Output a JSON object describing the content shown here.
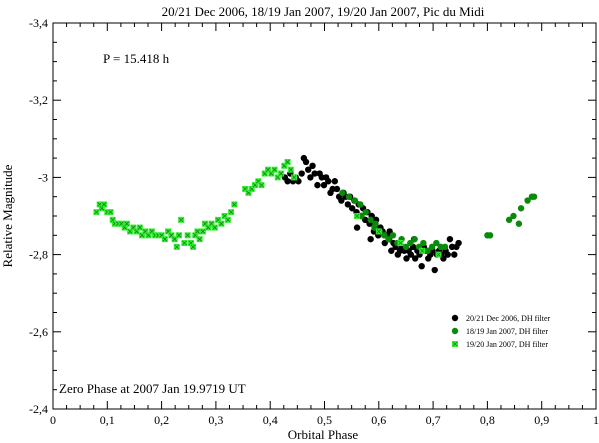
{
  "chart_data": {
    "type": "scatter",
    "title": "20/21 Dec 2006, 18/19 Jan 2007, 19/20 Jan 2007, Pic du Midi",
    "xlabel": "Orbital Phase",
    "ylabel": "Relative Magnitude",
    "xlim": [
      0,
      1
    ],
    "ylim": [
      -2.4,
      -3.4
    ],
    "y_inverted": true,
    "xticks": [
      "0",
      "0,1",
      "0,2",
      "0,3",
      "0,4",
      "0,5",
      "0,6",
      "0,7",
      "0,8",
      "0,9",
      "1"
    ],
    "yticks": [
      "-3,4",
      "-3,2",
      "-3",
      "-2,8",
      "-2,6",
      "-2,4"
    ],
    "grid": false,
    "legend_position": "bottom-right",
    "annotations": {
      "period": "P = 15.418 h",
      "zero_phase": "Zero Phase at 2007 Jan 19.9719 UT"
    },
    "series": [
      {
        "name": "20/21 Dec 2006, DH filter",
        "color": "#000000",
        "marker": "circle",
        "points": [
          [
            0.427,
            -3.0
          ],
          [
            0.432,
            -2.99
          ],
          [
            0.437,
            -3.01
          ],
          [
            0.442,
            -2.99
          ],
          [
            0.447,
            -3.0
          ],
          [
            0.452,
            -2.99
          ],
          [
            0.458,
            -3.01
          ],
          [
            0.462,
            -3.05
          ],
          [
            0.466,
            -3.04
          ],
          [
            0.47,
            -3.02
          ],
          [
            0.474,
            -3.0
          ],
          [
            0.478,
            -3.03
          ],
          [
            0.482,
            -3.01
          ],
          [
            0.487,
            -2.98
          ],
          [
            0.491,
            -3.01
          ],
          [
            0.495,
            -3.0
          ],
          [
            0.499,
            -2.98
          ],
          [
            0.503,
            -3.0
          ],
          [
            0.507,
            -2.99
          ],
          [
            0.511,
            -2.96
          ],
          [
            0.515,
            -2.97
          ],
          [
            0.519,
            -2.99
          ],
          [
            0.523,
            -2.97
          ],
          [
            0.527,
            -2.95
          ],
          [
            0.531,
            -2.94
          ],
          [
            0.535,
            -2.96
          ],
          [
            0.539,
            -2.95
          ],
          [
            0.543,
            -2.93
          ],
          [
            0.547,
            -2.95
          ],
          [
            0.551,
            -2.92
          ],
          [
            0.555,
            -2.94
          ],
          [
            0.559,
            -2.91
          ],
          [
            0.563,
            -2.93
          ],
          [
            0.567,
            -2.9
          ],
          [
            0.571,
            -2.92
          ],
          [
            0.575,
            -2.89
          ],
          [
            0.579,
            -2.91
          ],
          [
            0.583,
            -2.88
          ],
          [
            0.587,
            -2.9
          ],
          [
            0.591,
            -2.86
          ],
          [
            0.595,
            -2.89
          ],
          [
            0.599,
            -2.85
          ],
          [
            0.603,
            -2.87
          ],
          [
            0.607,
            -2.86
          ],
          [
            0.611,
            -2.83
          ],
          [
            0.615,
            -2.85
          ],
          [
            0.619,
            -2.84
          ],
          [
            0.623,
            -2.81
          ],
          [
            0.627,
            -2.83
          ],
          [
            0.631,
            -2.82
          ],
          [
            0.635,
            -2.8
          ],
          [
            0.639,
            -2.81
          ],
          [
            0.643,
            -2.82
          ],
          [
            0.647,
            -2.81
          ],
          [
            0.651,
            -2.79
          ],
          [
            0.655,
            -2.81
          ],
          [
            0.659,
            -2.8
          ],
          [
            0.663,
            -2.82
          ],
          [
            0.667,
            -2.79
          ],
          [
            0.671,
            -2.81
          ],
          [
            0.675,
            -2.8
          ],
          [
            0.679,
            -2.77
          ],
          [
            0.683,
            -2.82
          ],
          [
            0.687,
            -2.81
          ],
          [
            0.691,
            -2.79
          ],
          [
            0.695,
            -2.8
          ],
          [
            0.699,
            -2.81
          ],
          [
            0.703,
            -2.76
          ],
          [
            0.707,
            -2.8
          ],
          [
            0.711,
            -2.81
          ],
          [
            0.715,
            -2.8
          ],
          [
            0.719,
            -2.79
          ],
          [
            0.723,
            -2.81
          ],
          [
            0.727,
            -2.8
          ],
          [
            0.731,
            -2.84
          ],
          [
            0.735,
            -2.82
          ],
          [
            0.739,
            -2.8
          ],
          [
            0.743,
            -2.82
          ],
          [
            0.747,
            -2.83
          ],
          [
            0.56,
            -2.87
          ],
          [
            0.585,
            -2.84
          ],
          [
            0.62,
            -2.86
          ],
          [
            0.665,
            -2.84
          ]
        ]
      },
      {
        "name": "18/19 Jan 2007, DH filter",
        "color": "#0a8a0a",
        "marker": "circle",
        "points": [
          [
            0.533,
            -2.96
          ],
          [
            0.545,
            -2.95
          ],
          [
            0.556,
            -2.94
          ],
          [
            0.566,
            -2.93
          ],
          [
            0.576,
            -2.91
          ],
          [
            0.585,
            -2.89
          ],
          [
            0.594,
            -2.88
          ],
          [
            0.602,
            -2.86
          ],
          [
            0.61,
            -2.85
          ],
          [
            0.618,
            -2.84
          ],
          [
            0.626,
            -2.85
          ],
          [
            0.634,
            -2.83
          ],
          [
            0.642,
            -2.84
          ],
          [
            0.65,
            -2.82
          ],
          [
            0.658,
            -2.83
          ],
          [
            0.666,
            -2.84
          ],
          [
            0.674,
            -2.82
          ],
          [
            0.682,
            -2.83
          ],
          [
            0.69,
            -2.81
          ],
          [
            0.698,
            -2.82
          ],
          [
            0.706,
            -2.83
          ],
          [
            0.714,
            -2.82
          ],
          [
            0.722,
            -2.82
          ],
          [
            0.568,
            -2.9
          ],
          [
            0.592,
            -2.87
          ],
          [
            0.8,
            -2.85
          ],
          [
            0.805,
            -2.85
          ],
          [
            0.84,
            -2.89
          ],
          [
            0.848,
            -2.9
          ],
          [
            0.858,
            -2.88
          ],
          [
            0.862,
            -2.92
          ],
          [
            0.874,
            -2.94
          ],
          [
            0.882,
            -2.95
          ],
          [
            0.886,
            -2.95
          ]
        ]
      },
      {
        "name": "19/20 Jan 2007, DH filter",
        "color": "#33ee33",
        "marker": "square",
        "points": [
          [
            0.08,
            -2.91
          ],
          [
            0.086,
            -2.93
          ],
          [
            0.09,
            -2.92
          ],
          [
            0.094,
            -2.93
          ],
          [
            0.1,
            -2.91
          ],
          [
            0.106,
            -2.91
          ],
          [
            0.11,
            -2.89
          ],
          [
            0.114,
            -2.88
          ],
          [
            0.12,
            -2.88
          ],
          [
            0.126,
            -2.88
          ],
          [
            0.132,
            -2.87
          ],
          [
            0.136,
            -2.88
          ],
          [
            0.142,
            -2.86
          ],
          [
            0.148,
            -2.87
          ],
          [
            0.154,
            -2.86
          ],
          [
            0.16,
            -2.87
          ],
          [
            0.164,
            -2.85
          ],
          [
            0.17,
            -2.86
          ],
          [
            0.176,
            -2.85
          ],
          [
            0.182,
            -2.86
          ],
          [
            0.188,
            -2.85
          ],
          [
            0.194,
            -2.85
          ],
          [
            0.2,
            -2.85
          ],
          [
            0.206,
            -2.84
          ],
          [
            0.212,
            -2.86
          ],
          [
            0.218,
            -2.85
          ],
          [
            0.224,
            -2.84
          ],
          [
            0.228,
            -2.82
          ],
          [
            0.232,
            -2.85
          ],
          [
            0.236,
            -2.89
          ],
          [
            0.242,
            -2.83
          ],
          [
            0.248,
            -2.85
          ],
          [
            0.254,
            -2.83
          ],
          [
            0.258,
            -2.82
          ],
          [
            0.262,
            -2.85
          ],
          [
            0.266,
            -2.86
          ],
          [
            0.27,
            -2.84
          ],
          [
            0.276,
            -2.86
          ],
          [
            0.28,
            -2.88
          ],
          [
            0.286,
            -2.87
          ],
          [
            0.292,
            -2.88
          ],
          [
            0.298,
            -2.87
          ],
          [
            0.304,
            -2.89
          ],
          [
            0.31,
            -2.88
          ],
          [
            0.316,
            -2.9
          ],
          [
            0.322,
            -2.89
          ],
          [
            0.328,
            -2.91
          ],
          [
            0.334,
            -2.93
          ],
          [
            0.354,
            -2.97
          ],
          [
            0.36,
            -2.96
          ],
          [
            0.366,
            -2.97
          ],
          [
            0.372,
            -2.98
          ],
          [
            0.378,
            -2.99
          ],
          [
            0.384,
            -2.98
          ],
          [
            0.39,
            -3.01
          ],
          [
            0.396,
            -3.02
          ],
          [
            0.402,
            -3.01
          ],
          [
            0.408,
            -3.02
          ],
          [
            0.414,
            -3.0
          ],
          [
            0.42,
            -3.01
          ],
          [
            0.426,
            -3.03
          ],
          [
            0.432,
            -3.04
          ],
          [
            0.438,
            -3.02
          ],
          [
            0.444,
            -3.0
          ],
          [
            0.56,
            -2.9
          ],
          [
            0.6,
            -2.86
          ],
          [
            0.64,
            -2.83
          ],
          [
            0.68,
            -2.81
          ],
          [
            0.71,
            -2.8
          ]
        ]
      }
    ]
  }
}
